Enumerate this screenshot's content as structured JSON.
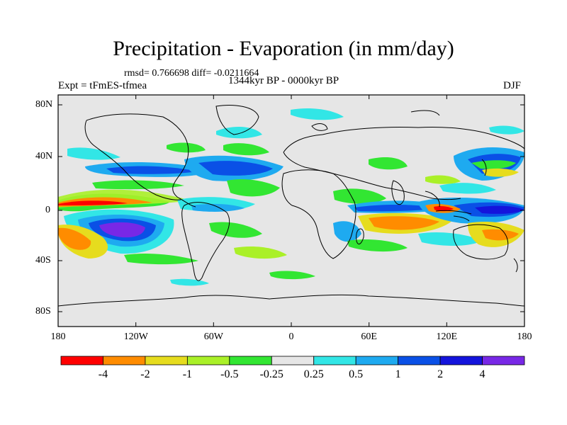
{
  "figure": {
    "title": "Precipitation - Evaporation (in mm/day)",
    "stats": "rmsd= 0.766698 diff= -0.0211664",
    "period": "1344kyr BP - 0000kyr BP",
    "experiment": "Expt = tFmES-tfmea",
    "season": "DJF"
  },
  "axes": {
    "y_ticks": [
      "80N",
      "40N",
      "0",
      "40S",
      "80S"
    ],
    "x_ticks": [
      "180",
      "120W",
      "60W",
      "0",
      "60E",
      "120E",
      "180"
    ]
  },
  "colorbar": {
    "labels": [
      "-4",
      "-2",
      "-1",
      "-0.5",
      "-0.25",
      "0.25",
      "0.5",
      "1",
      "2",
      "4"
    ],
    "colors": [
      "#ff0000",
      "#ff8c00",
      "#e6dc1e",
      "#aaf028",
      "#32e632",
      "#e6e6e6",
      "#32e6e6",
      "#1eaaf0",
      "#0a50e6",
      "#1414dc",
      "#7828e6"
    ]
  },
  "map": {
    "background_color": "#e6e6e6",
    "lon_range": [
      -180,
      180
    ],
    "lat_range": [
      -90,
      90
    ]
  }
}
